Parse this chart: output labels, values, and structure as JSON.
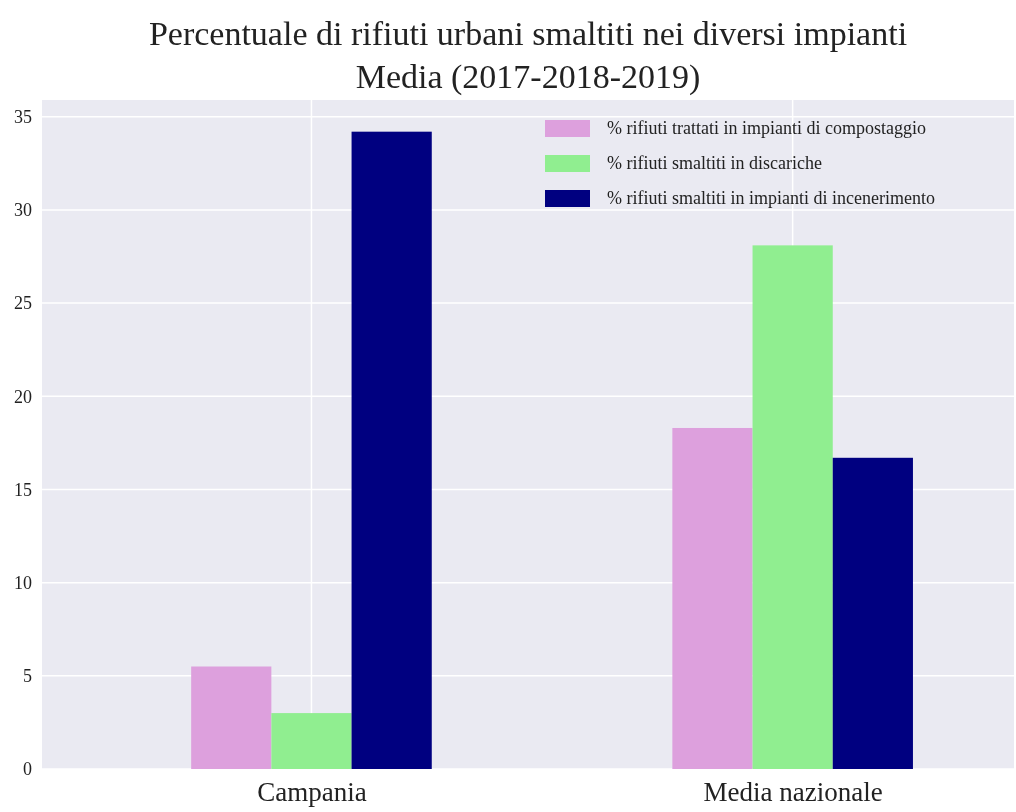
{
  "chart_data": {
    "type": "bar",
    "title": "Percentuale di rifiuti urbani smaltiti nei diversi impianti",
    "subtitle": "Media (2017-2018-2019)",
    "categories": [
      "Campania",
      "Media nazionale"
    ],
    "series": [
      {
        "name": "% rifiuti trattati in impianti di compostaggio",
        "color": "#dda0dd",
        "values": [
          5.5,
          18.3
        ]
      },
      {
        "name": "% rifiuti smaltiti in discariche",
        "color": "#90ee90",
        "values": [
          3.0,
          28.1
        ]
      },
      {
        "name": "% rifiuti smaltiti in impianti di incenerimento",
        "color": "#000080",
        "values": [
          34.2,
          16.7
        ]
      }
    ],
    "ylim": [
      0,
      35.9
    ],
    "yticks": [
      0,
      5,
      10,
      15,
      20,
      25,
      30,
      35
    ],
    "grid": true,
    "legend": "top right"
  }
}
